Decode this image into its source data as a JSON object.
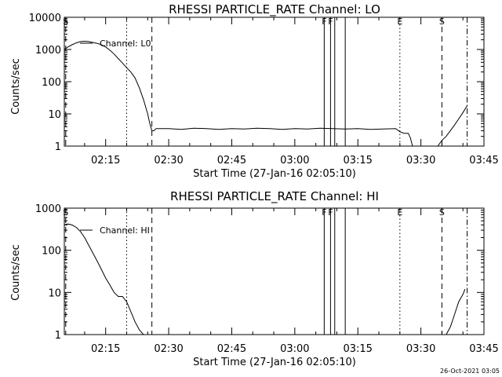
{
  "timestamp": "26-Oct-2021 03:05",
  "colors": {
    "foreground": "#000000",
    "background": "#ffffff"
  },
  "chart_data": [
    {
      "type": "line",
      "title": "RHESSI PARTICLE_RATE Channel: LO",
      "xlabel": "Start Time (27-Jan-16 02:05:10)",
      "ylabel": "Counts/sec",
      "y_scale": "log",
      "xlim": [
        "02:05:10",
        "03:45"
      ],
      "ylim": [
        1,
        10000
      ],
      "x_tick_labels": [
        "02:15",
        "02:30",
        "02:45",
        "03:00",
        "03:15",
        "03:30",
        "03:45"
      ],
      "y_tick_labels": [
        "1",
        "10",
        "100",
        "1000",
        "10000"
      ],
      "legend": {
        "label": "Channel: L0",
        "placement": "top-left"
      },
      "series": [
        {
          "name": "Channel: L0",
          "x": [
            "02:05:10",
            "02:06",
            "02:07",
            "02:08",
            "02:09",
            "02:10",
            "02:11",
            "02:12",
            "02:13",
            "02:14",
            "02:15",
            "02:16",
            "02:17",
            "02:18",
            "02:19",
            "02:20",
            "02:21",
            "02:22",
            "02:23",
            "02:24",
            "02:25",
            "02:25:30",
            "02:26",
            "02:26:30",
            "02:27",
            "02:30",
            "02:33",
            "02:36",
            "02:39",
            "02:42",
            "02:45",
            "02:48",
            "02:51",
            "02:54",
            "02:57",
            "03:00",
            "03:03",
            "03:06",
            "03:09",
            "03:12",
            "03:15",
            "03:18",
            "03:21",
            "03:24",
            "03:25",
            "03:26",
            "03:27",
            "03:27:30",
            "03:28",
            "03:34",
            "03:35",
            "03:36",
            "03:37",
            "03:38",
            "03:39",
            "03:40",
            "03:41"
          ],
          "values": [
            1000,
            1200,
            1400,
            1600,
            1750,
            1800,
            1750,
            1650,
            1550,
            1400,
            1200,
            950,
            720,
            520,
            380,
            270,
            200,
            130,
            65,
            28,
            10,
            5,
            3,
            3,
            3.5,
            3.5,
            3.3,
            3.6,
            3.5,
            3.3,
            3.5,
            3.4,
            3.6,
            3.5,
            3.3,
            3.5,
            3.4,
            3.6,
            3.5,
            3.4,
            3.5,
            3.3,
            3.4,
            3.5,
            2.8,
            2.5,
            2.5,
            1.8,
            1,
            1,
            1.5,
            2,
            3,
            4.5,
            7,
            11,
            18
          ]
        }
      ],
      "markers": [
        {
          "label": "S",
          "x": "02:05:30",
          "style": "dashed"
        },
        {
          "label": "",
          "x": "02:20",
          "style": "dotted"
        },
        {
          "label": "",
          "x": "02:26",
          "style": "dashed"
        },
        {
          "label": "F",
          "x": "03:07",
          "style": "solid"
        },
        {
          "label": "F",
          "x": "03:08:30",
          "style": "solid"
        },
        {
          "label": "",
          "x": "03:09:30",
          "style": "solid"
        },
        {
          "label": "",
          "x": "03:12",
          "style": "solid"
        },
        {
          "label": "E",
          "x": "03:25",
          "style": "dotted"
        },
        {
          "label": "S",
          "x": "03:35",
          "style": "dashed"
        },
        {
          "label": "",
          "x": "03:41",
          "style": "dashdot"
        }
      ]
    },
    {
      "type": "line",
      "title": "RHESSI PARTICLE_RATE Channel: HI",
      "xlabel": "Start Time (27-Jan-16 02:05:10)",
      "ylabel": "Counts/sec",
      "y_scale": "log",
      "xlim": [
        "02:05:10",
        "03:45"
      ],
      "ylim": [
        1,
        1000
      ],
      "x_tick_labels": [
        "02:15",
        "02:30",
        "02:45",
        "03:00",
        "03:15",
        "03:30",
        "03:45"
      ],
      "y_tick_labels": [
        "1",
        "10",
        "100",
        "1000"
      ],
      "legend": {
        "label": "Channel: HI",
        "placement": "top-left"
      },
      "series": [
        {
          "name": "Channel: HI",
          "x": [
            "02:05:10",
            "02:06",
            "02:07",
            "02:08",
            "02:09",
            "02:10",
            "02:11",
            "02:12",
            "02:13",
            "02:14",
            "02:15",
            "02:16",
            "02:17",
            "02:18",
            "02:19",
            "02:20",
            "02:21",
            "02:22",
            "02:23",
            "02:24",
            "03:36",
            "03:37",
            "03:38",
            "03:39",
            "03:40",
            "03:40:30"
          ],
          "values": [
            400,
            420,
            400,
            350,
            280,
            200,
            130,
            85,
            55,
            35,
            22,
            15,
            10,
            8,
            8,
            6,
            3.5,
            2,
            1.3,
            1,
            1,
            1.5,
            3,
            6,
            9,
            12
          ]
        }
      ],
      "markers": [
        {
          "label": "S",
          "x": "02:05:30",
          "style": "dashed"
        },
        {
          "label": "",
          "x": "02:20",
          "style": "dotted"
        },
        {
          "label": "",
          "x": "02:26",
          "style": "dashed"
        },
        {
          "label": "F",
          "x": "03:07",
          "style": "solid"
        },
        {
          "label": "F",
          "x": "03:08:30",
          "style": "solid"
        },
        {
          "label": "",
          "x": "03:09:30",
          "style": "solid"
        },
        {
          "label": "",
          "x": "03:12",
          "style": "solid"
        },
        {
          "label": "E",
          "x": "03:25",
          "style": "dotted"
        },
        {
          "label": "S",
          "x": "03:35",
          "style": "dashed"
        },
        {
          "label": "",
          "x": "03:41",
          "style": "dashdot"
        }
      ]
    }
  ]
}
